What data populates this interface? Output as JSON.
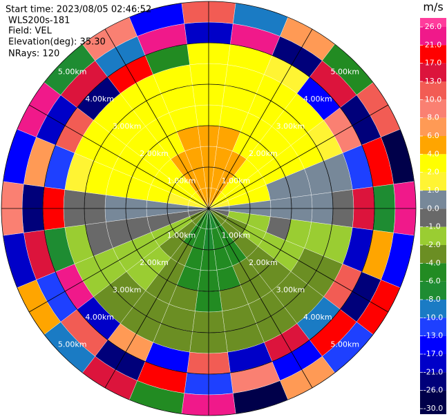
{
  "chart_data": {
    "type": "ppi",
    "info_lines": [
      "Start time: 2023/08/05 02:46:52",
      "WLS200s-181",
      "Field: VEL",
      "Elevation(deg): 35.30",
      "NRays: 120"
    ],
    "rlim": [
      0,
      5
    ],
    "rticks": [
      {
        "value": 1,
        "label": "1.00km"
      },
      {
        "value": 2,
        "label": "2.00km"
      },
      {
        "value": 3,
        "label": "3.00km"
      },
      {
        "value": 4,
        "label": "4.00km"
      },
      {
        "value": 5,
        "label": "5.00km"
      }
    ],
    "colorbar": {
      "title": "m/s",
      "ticks": [
        {
          "value": 26,
          "label": "26.0"
        },
        {
          "value": 21,
          "label": "21.0"
        },
        {
          "value": 17,
          "label": "17.0"
        },
        {
          "value": 13,
          "label": "13.0"
        },
        {
          "value": 10,
          "label": "10.0"
        },
        {
          "value": 8,
          "label": "8.0"
        },
        {
          "value": 6,
          "label": "6.0"
        },
        {
          "value": 4,
          "label": "4.0"
        },
        {
          "value": 2,
          "label": "2.0"
        },
        {
          "value": 1,
          "label": "1.0"
        },
        {
          "value": 0,
          "label": "0.0"
        },
        {
          "value": -1,
          "label": "-1.0"
        },
        {
          "value": -2,
          "label": "-2.0"
        },
        {
          "value": -4,
          "label": "-4.0"
        },
        {
          "value": -6,
          "label": "-6.0"
        },
        {
          "value": -8,
          "label": "-8.0"
        },
        {
          "value": -10,
          "label": "-10.0"
        },
        {
          "value": -13,
          "label": "-13.0"
        },
        {
          "value": -17,
          "label": "-17.0"
        },
        {
          "value": -21,
          "label": "-21.0"
        },
        {
          "value": -26,
          "label": "-26.0"
        },
        {
          "value": -30,
          "label": "-30.0"
        }
      ],
      "colors": [
        "#ff3c9c",
        "#f0198a",
        "#ff0000",
        "#dc143c",
        "#f25c54",
        "#fa8072",
        "#ff9a55",
        "#ffa500",
        "#ffff00",
        "#fff433",
        "#778899",
        "#696969",
        "#9acd32",
        "#6b8e23",
        "#228b22",
        "#1e8c32",
        "#1a7bc4",
        "#1e40ff",
        "#0000ff",
        "#0000c8",
        "#00007a",
        "#00004a"
      ]
    },
    "gates": [
      [
        4,
        5,
        5,
        4,
        3,
        3,
        3,
        2.5,
        -18,
        12
      ],
      [
        4,
        5,
        5,
        4,
        3,
        3,
        3,
        2.5,
        22,
        -9
      ],
      [
        4,
        4,
        4,
        3,
        3,
        3,
        2.5,
        1.5,
        -25,
        7
      ],
      [
        3,
        3,
        3,
        3,
        3,
        2.5,
        2.5,
        -14,
        16,
        -5
      ],
      [
        2,
        3,
        3,
        3,
        2.5,
        2.5,
        1.5,
        9,
        -22,
        11
      ],
      [
        1,
        2,
        2.5,
        0.5,
        0.5,
        0.5,
        0.5,
        -11,
        19,
        -28
      ],
      [
        0.5,
        0.5,
        0.5,
        0.5,
        0.5,
        0.5,
        -0.5,
        14,
        -7,
        23
      ],
      [
        -1,
        -1.5,
        -1.5,
        -0.5,
        -1.5,
        -1.5,
        -1.5,
        -19,
        5,
        -15
      ],
      [
        -3,
        -3,
        -1.5,
        -1.5,
        -1.5,
        -3,
        -3,
        11,
        -24,
        18
      ],
      [
        -3,
        -3,
        -3,
        -3,
        -3,
        -3,
        -3,
        -9,
        20,
        -12
      ],
      [
        -5,
        -5,
        -5,
        -3,
        -3,
        -3,
        -3,
        16,
        -16,
        7
      ],
      [
        -7,
        -5,
        -5,
        -5,
        -3,
        -3,
        -3,
        -21,
        9,
        -27
      ],
      [
        -7,
        -7,
        -5,
        -5,
        -5,
        -3,
        -3,
        12,
        -11,
        25
      ],
      [
        -5,
        -5,
        -5,
        -5,
        -3,
        -3,
        -3,
        -15,
        18,
        -6
      ],
      [
        -5,
        -5,
        -3,
        -3,
        -3,
        -3,
        -3,
        7,
        -23,
        14
      ],
      [
        -3,
        -3,
        -3,
        -1.5,
        -1.5,
        -3,
        -3,
        -18,
        11,
        -9
      ],
      [
        -3,
        -1.5,
        -1.5,
        -1.5,
        -1.5,
        -1.5,
        -1.5,
        22,
        -13,
        5
      ],
      [
        -0.5,
        -0.5,
        -0.5,
        -0.5,
        -0.5,
        -0.5,
        -1.5,
        -8,
        15,
        -20
      ],
      [
        0.5,
        0.5,
        0.5,
        0.5,
        0.5,
        -0.5,
        -0.5,
        18,
        -26,
        9
      ],
      [
        1.5,
        1.5,
        3,
        3,
        2.5,
        2.5,
        1.5,
        -12,
        7,
        -17
      ],
      [
        3,
        3,
        3,
        3,
        2.5,
        2.5,
        2.5,
        10,
        -19,
        24
      ],
      [
        3,
        3,
        3,
        3,
        2.5,
        2.5,
        2.5,
        -23,
        13,
        -7
      ],
      [
        4,
        5,
        5,
        3,
        3,
        3,
        2.5,
        17,
        -10,
        8
      ],
      [
        4,
        5,
        5,
        4,
        3,
        3,
        2.5,
        -6,
        21,
        -14
      ]
    ]
  }
}
